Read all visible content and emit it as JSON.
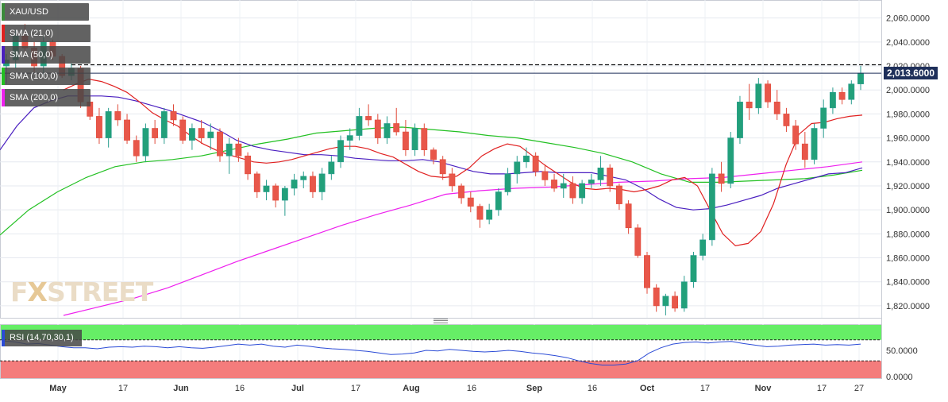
{
  "chart_data": {
    "type": "candlestick",
    "symbol": "XAU/USD",
    "current_price_label": "2,013.6000",
    "resistance_level": 2021,
    "y_axis": {
      "range": [
        1810,
        2075
      ],
      "ticks": [
        1820,
        1840,
        1860,
        1880,
        1900,
        1920,
        1940,
        1960,
        1980,
        2000,
        2020,
        2040,
        2060
      ],
      "tick_labels": [
        "1,820.0000",
        "1,840.0000",
        "1,860.0000",
        "1,880.0000",
        "1,900.0000",
        "1,920.0000",
        "1,940.0000",
        "1,960.0000",
        "1,980.0000",
        "2,000.0000",
        "2,020.0000",
        "2,040.0000",
        "2,060.0000"
      ]
    },
    "x_axis": {
      "labels": [
        "May",
        "17",
        "Jun",
        "16",
        "Jul",
        "17",
        "Aug",
        "16",
        "Sep",
        "16",
        "Oct",
        "17",
        "Nov",
        "17",
        "27"
      ],
      "bold_labels": [
        "May",
        "Jun",
        "Jul",
        "Aug",
        "Sep",
        "Oct",
        "Nov"
      ]
    },
    "indicators": [
      {
        "label": "SMA (21,0)",
        "color": "#e02020"
      },
      {
        "label": "SMA (50,0)",
        "color": "#4a1fc0"
      },
      {
        "label": "SMA (100,0)",
        "color": "#22c022"
      },
      {
        "label": "SMA (200,0)",
        "color": "#ee20ee"
      }
    ],
    "sma": {
      "sma21": [
        2000,
        2005,
        2009,
        2007,
        2003,
        1998,
        1990,
        1981,
        1975,
        1970,
        1962,
        1955,
        1950,
        1946,
        1943,
        1940,
        1939,
        1940,
        1942,
        1945,
        1948,
        1951,
        1953,
        1953,
        1951,
        1947,
        1944,
        1938,
        1932,
        1928,
        1927,
        1928,
        1935,
        1945,
        1951,
        1955,
        1953,
        1945,
        1937,
        1930,
        1923,
        1918,
        1917,
        1918,
        1917,
        1915,
        1917,
        1920,
        1925,
        1927,
        1920,
        1900,
        1880,
        1870,
        1872,
        1882,
        1905,
        1938,
        1963,
        1972,
        1973,
        1976,
        1978,
        1979
      ],
      "sma50": [
        1950,
        1970,
        1985,
        1991,
        1995,
        1995,
        1995,
        1994,
        1991,
        1987,
        1983,
        1978,
        1973,
        1966,
        1958,
        1953,
        1950,
        1948,
        1946,
        1946,
        1945,
        1943,
        1942,
        1941,
        1941,
        1942,
        1940,
        1936,
        1932,
        1930,
        1930,
        1931,
        1932,
        1931,
        1931,
        1931,
        1928,
        1925,
        1918,
        1909,
        1902,
        1900,
        1901,
        1904,
        1908,
        1912,
        1918,
        1922,
        1926,
        1930,
        1931,
        1935
      ],
      "sma100": [
        1879,
        1900,
        1915,
        1927,
        1936,
        1940,
        1942,
        1945,
        1950,
        1955,
        1959,
        1964,
        1966,
        1968,
        1969,
        1967,
        1965,
        1962,
        1960,
        1956,
        1952,
        1947,
        1940,
        1930,
        1923,
        1923,
        1924,
        1925,
        1926,
        1929,
        1933
      ],
      "sma200": [
        1812,
        1819,
        1826,
        1835,
        1846,
        1857,
        1867,
        1877,
        1887,
        1896,
        1904,
        1913,
        1916,
        1918,
        1919,
        1921,
        1923,
        1924,
        1926,
        1927,
        1930,
        1933,
        1936,
        1940
      ]
    },
    "candles_ohlc": [
      [
        2020,
        2030,
        2005,
        2025
      ],
      [
        2025,
        2050,
        2018,
        2045
      ],
      [
        2045,
        2055,
        2030,
        2035
      ],
      [
        2035,
        2040,
        2015,
        2020
      ],
      [
        2020,
        2045,
        2012,
        2040
      ],
      [
        2040,
        2042,
        2025,
        2028
      ],
      [
        2028,
        2030,
        2010,
        2012
      ],
      [
        2012,
        2022,
        2008,
        2018
      ],
      [
        2018,
        2020,
        1985,
        1990
      ],
      [
        1990,
        1995,
        1975,
        1978
      ],
      [
        1978,
        1985,
        1955,
        1960
      ],
      [
        1960,
        1985,
        1952,
        1982
      ],
      [
        1982,
        1988,
        1970,
        1975
      ],
      [
        1975,
        1980,
        1955,
        1958
      ],
      [
        1958,
        1962,
        1940,
        1945
      ],
      [
        1945,
        1972,
        1940,
        1968
      ],
      [
        1968,
        1975,
        1955,
        1960
      ],
      [
        1960,
        1985,
        1955,
        1982
      ],
      [
        1982,
        1988,
        1970,
        1975
      ],
      [
        1975,
        1978,
        1955,
        1958
      ],
      [
        1958,
        1972,
        1950,
        1968
      ],
      [
        1968,
        1975,
        1955,
        1960
      ],
      [
        1960,
        1972,
        1950,
        1965
      ],
      [
        1965,
        1968,
        1940,
        1945
      ],
      [
        1945,
        1960,
        1930,
        1955
      ],
      [
        1955,
        1960,
        1940,
        1945
      ],
      [
        1945,
        1948,
        1925,
        1930
      ],
      [
        1930,
        1932,
        1910,
        1915
      ],
      [
        1915,
        1925,
        1908,
        1920
      ],
      [
        1920,
        1922,
        1902,
        1908
      ],
      [
        1908,
        1920,
        1895,
        1918
      ],
      [
        1918,
        1930,
        1912,
        1925
      ],
      [
        1925,
        1932,
        1918,
        1928
      ],
      [
        1928,
        1932,
        1910,
        1915
      ],
      [
        1915,
        1935,
        1908,
        1930
      ],
      [
        1930,
        1945,
        1925,
        1940
      ],
      [
        1940,
        1962,
        1935,
        1958
      ],
      [
        1958,
        1968,
        1950,
        1962
      ],
      [
        1962,
        1985,
        1958,
        1978
      ],
      [
        1978,
        1988,
        1970,
        1975
      ],
      [
        1975,
        1980,
        1955,
        1960
      ],
      [
        1960,
        1978,
        1955,
        1972
      ],
      [
        1972,
        1985,
        1962,
        1965
      ],
      [
        1965,
        1975,
        1945,
        1950
      ],
      [
        1950,
        1972,
        1945,
        1968
      ],
      [
        1968,
        1972,
        1945,
        1950
      ],
      [
        1950,
        1952,
        1938,
        1942
      ],
      [
        1942,
        1945,
        1925,
        1930
      ],
      [
        1930,
        1935,
        1915,
        1920
      ],
      [
        1920,
        1922,
        1905,
        1910
      ],
      [
        1910,
        1915,
        1898,
        1903
      ],
      [
        1903,
        1905,
        1885,
        1892
      ],
      [
        1892,
        1905,
        1888,
        1900
      ],
      [
        1900,
        1918,
        1895,
        1915
      ],
      [
        1915,
        1935,
        1912,
        1930
      ],
      [
        1930,
        1945,
        1922,
        1940
      ],
      [
        1940,
        1952,
        1935,
        1945
      ],
      [
        1945,
        1948,
        1928,
        1932
      ],
      [
        1932,
        1938,
        1920,
        1925
      ],
      [
        1925,
        1930,
        1915,
        1918
      ],
      [
        1918,
        1930,
        1910,
        1922
      ],
      [
        1922,
        1928,
        1905,
        1910
      ],
      [
        1910,
        1925,
        1905,
        1922
      ],
      [
        1922,
        1930,
        1918,
        1925
      ],
      [
        1925,
        1945,
        1920,
        1935
      ],
      [
        1935,
        1938,
        1915,
        1920
      ],
      [
        1920,
        1922,
        1900,
        1905
      ],
      [
        1905,
        1908,
        1880,
        1885
      ],
      [
        1885,
        1888,
        1860,
        1862
      ],
      [
        1862,
        1865,
        1830,
        1835
      ],
      [
        1835,
        1838,
        1815,
        1820
      ],
      [
        1820,
        1830,
        1812,
        1828
      ],
      [
        1828,
        1832,
        1815,
        1818
      ],
      [
        1818,
        1845,
        1815,
        1840
      ],
      [
        1840,
        1865,
        1835,
        1862
      ],
      [
        1862,
        1880,
        1858,
        1875
      ],
      [
        1875,
        1935,
        1870,
        1930
      ],
      [
        1930,
        1940,
        1915,
        1922
      ],
      [
        1922,
        1965,
        1918,
        1960
      ],
      [
        1960,
        1995,
        1955,
        1990
      ],
      [
        1990,
        2005,
        1975,
        1985
      ],
      [
        1985,
        2010,
        1980,
        2005
      ],
      [
        2005,
        2008,
        1985,
        1990
      ],
      [
        1990,
        2000,
        1975,
        1980
      ],
      [
        1980,
        1985,
        1965,
        1970
      ],
      [
        1970,
        1975,
        1950,
        1955
      ],
      [
        1955,
        1965,
        1935,
        1942
      ],
      [
        1942,
        1972,
        1938,
        1968
      ],
      [
        1968,
        1992,
        1960,
        1985
      ],
      [
        1985,
        2002,
        1980,
        1998
      ],
      [
        1998,
        2002,
        1988,
        1992
      ],
      [
        1992,
        2008,
        1988,
        2005
      ],
      [
        2005,
        2020,
        2000,
        2014
      ]
    ],
    "rsi": {
      "label": "RSI (14,70,30,1)",
      "axis_labels": [
        "50.0000",
        "0.0000"
      ],
      "overbought": 70,
      "oversold": 30,
      "values": [
        68,
        66,
        62,
        63,
        60,
        57,
        55,
        55,
        53,
        56,
        57,
        56,
        58,
        57,
        55,
        57,
        55,
        54,
        56,
        59,
        62,
        60,
        62,
        58,
        56,
        60,
        58,
        55,
        53,
        52,
        50,
        48,
        45,
        42,
        43,
        45,
        50,
        49,
        52,
        50,
        48,
        47,
        48,
        50,
        48,
        45,
        43,
        40,
        36,
        30,
        25,
        22,
        22,
        24,
        30,
        45,
        55,
        62,
        65,
        66,
        64,
        66,
        67,
        63,
        60,
        57,
        58,
        60,
        61,
        62,
        60,
        61,
        60,
        62
      ]
    },
    "watermark": "FXSTREET"
  }
}
